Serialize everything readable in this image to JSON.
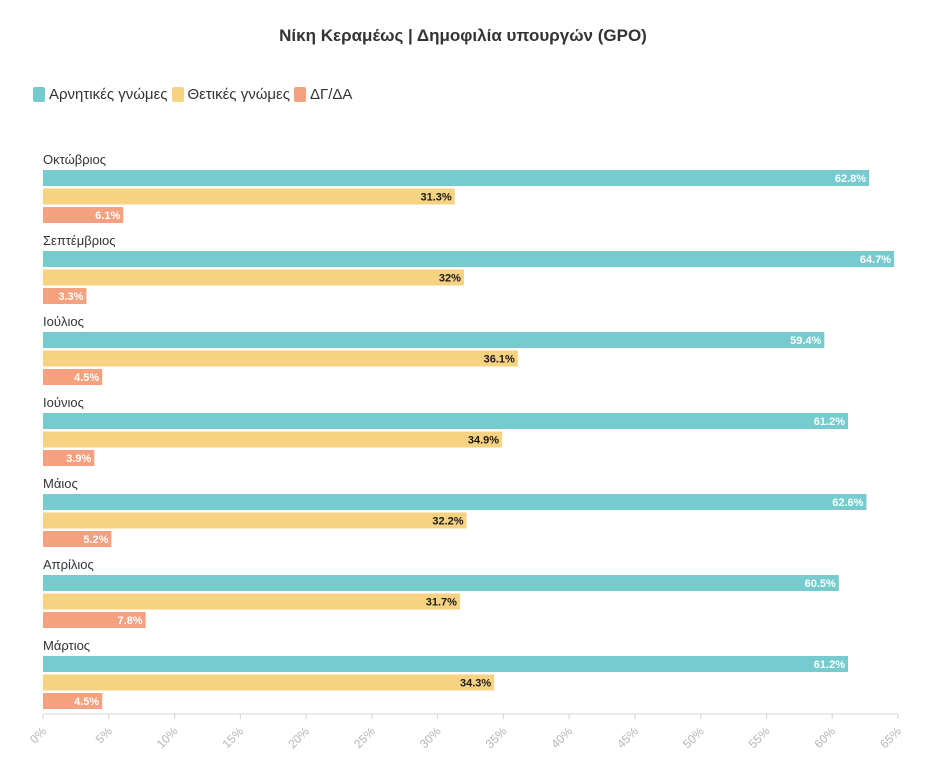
{
  "chart_data": {
    "type": "bar",
    "orientation": "horizontal",
    "title": "Νίκη Κεραμέως | Δημοφιλία υπουργών (GPO)",
    "categories": [
      "Οκτώβριος",
      "Σεπτέμβριος",
      "Ιούλιος",
      "Ιούνιος",
      "Μάιος",
      "Απρίλιος",
      "Μάρτιος"
    ],
    "series": [
      {
        "name": "Αρνητικές γνώμες",
        "color": "#76cbcf",
        "label_color": "#ffffff",
        "values": [
          62.8,
          64.7,
          59.4,
          61.2,
          62.6,
          60.5,
          61.2
        ],
        "labels": [
          "62.8%",
          "64.7%",
          "59.4%",
          "61.2%",
          "62.6%",
          "60.5%",
          "61.2%"
        ]
      },
      {
        "name": "Θετικές γνώμες",
        "color": "#f7d281",
        "label_color": "#1a1a1a",
        "values": [
          31.3,
          32,
          36.1,
          34.9,
          32.2,
          31.7,
          34.3
        ],
        "labels": [
          "31.3%",
          "32%",
          "36.1%",
          "34.9%",
          "32.2%",
          "31.7%",
          "34.3%"
        ]
      },
      {
        "name": "ΔΓ/ΔΑ",
        "color": "#f5a07f",
        "label_color": "#ffffff",
        "values": [
          6.1,
          3.3,
          4.5,
          3.9,
          5.2,
          7.8,
          4.5
        ],
        "labels": [
          "6.1%",
          "3.3%",
          "4.5%",
          "3.9%",
          "5.2%",
          "7.8%",
          "4.5%"
        ]
      }
    ],
    "xlim": [
      0,
      65
    ],
    "xticks": [
      0,
      5,
      10,
      15,
      20,
      25,
      30,
      35,
      40,
      45,
      50,
      55,
      60,
      65
    ],
    "xtick_labels": [
      "0%",
      "5%",
      "10%",
      "15%",
      "20%",
      "25%",
      "30%",
      "35%",
      "40%",
      "45%",
      "50%",
      "55%",
      "60%",
      "65%"
    ],
    "legend_position": "top-left",
    "grid": false
  }
}
